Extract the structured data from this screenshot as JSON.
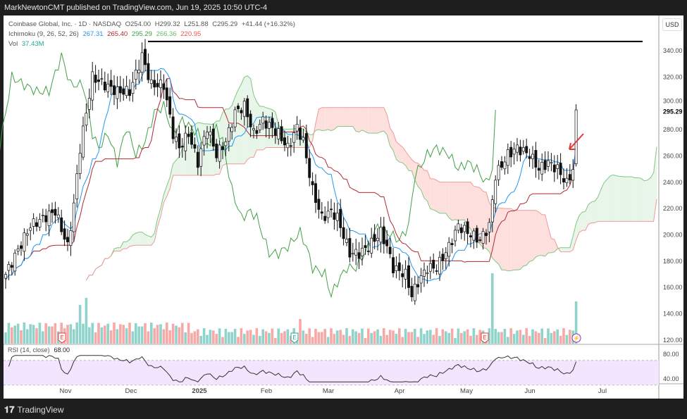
{
  "publisher_line": "MarkNewtonCMT published on TradingView.com, Jun 19, 2025 10:50 UTC-4",
  "legend": {
    "symbol": "Coinbase Global, Inc. · 1D · NASDAQ",
    "open": "O254.00",
    "high": "H299.32",
    "low": "L251.88",
    "close": "C295.29",
    "change": "+41.44 (+16.32%)",
    "ichimoku_label": "Ichimoku (9, 26, 52, 26)",
    "ichimoku_values": [
      "267.31",
      "265.40",
      "295.29",
      "266.36",
      "220.95"
    ],
    "vol_label": "Vol",
    "vol_value": "37.43M",
    "rsi_label": "RSI (14, close)",
    "rsi_value": "68.00"
  },
  "currency": "USD",
  "last_price_label": "295.29",
  "colors": {
    "up": "#26a69a",
    "down": "#ef5350",
    "conversion": "#2196f3",
    "base": "#b22833",
    "lagging": "#43a047",
    "cloud_up": "#e8f5e9",
    "cloud_down": "#fde0dd",
    "rsi_bg": "#f3e5fd"
  },
  "footer": "TradingView",
  "event_markers": [
    "E",
    "E",
    "E"
  ],
  "chart_data": {
    "type": "candlestick",
    "y_ticks": [
      "340.00",
      "320.00",
      "300.00",
      "280.00",
      "260.00",
      "240.00",
      "220.00",
      "200.00",
      "180.00",
      "160.00",
      "140.00",
      "120.00"
    ],
    "ylim": [
      120,
      340
    ],
    "rsi_ticks": [
      "80.00",
      "40.00"
    ],
    "x_ticks": [
      "Nov",
      "Dec",
      "2025",
      "Feb",
      "Mar",
      "Apr",
      "May",
      "Jun",
      "Jul"
    ],
    "resistance_level": 347,
    "price_path": [
      [
        0,
        170
      ],
      [
        8,
        207
      ],
      [
        16,
        218
      ],
      [
        20,
        191
      ],
      [
        22,
        223
      ],
      [
        24,
        266
      ],
      [
        28,
        320
      ],
      [
        32,
        314
      ],
      [
        36,
        309
      ],
      [
        40,
        309
      ],
      [
        44,
        336
      ],
      [
        47,
        314
      ],
      [
        51,
        314
      ],
      [
        54,
        277
      ],
      [
        56,
        266
      ],
      [
        59,
        277
      ],
      [
        62,
        255
      ],
      [
        65,
        282
      ],
      [
        68,
        261
      ],
      [
        71,
        271
      ],
      [
        74,
        293
      ],
      [
        77,
        298
      ],
      [
        80,
        277
      ],
      [
        83,
        287
      ],
      [
        88,
        277
      ],
      [
        91,
        266
      ],
      [
        94,
        282
      ],
      [
        96,
        271
      ],
      [
        99,
        234
      ],
      [
        102,
        213
      ],
      [
        105,
        218
      ],
      [
        107,
        213
      ],
      [
        111,
        186
      ],
      [
        114,
        186
      ],
      [
        117,
        191
      ],
      [
        121,
        202
      ],
      [
        123,
        191
      ],
      [
        125,
        175
      ],
      [
        129,
        170
      ],
      [
        131,
        154
      ],
      [
        133,
        164
      ],
      [
        136,
        175
      ],
      [
        139,
        175
      ],
      [
        143,
        191
      ],
      [
        146,
        207
      ],
      [
        149,
        202
      ],
      [
        153,
        196
      ],
      [
        156,
        207
      ],
      [
        158,
        245
      ],
      [
        162,
        261
      ],
      [
        165,
        266
      ],
      [
        169,
        261
      ],
      [
        172,
        250
      ],
      [
        175,
        255
      ],
      [
        178,
        250
      ],
      [
        181,
        239
      ],
      [
        183,
        250
      ],
      [
        184,
        295
      ]
    ],
    "volume_spikes": [
      [
        24,
        55
      ],
      [
        26,
        65
      ],
      [
        95,
        35
      ],
      [
        157,
        100
      ],
      [
        184,
        60
      ]
    ]
  }
}
